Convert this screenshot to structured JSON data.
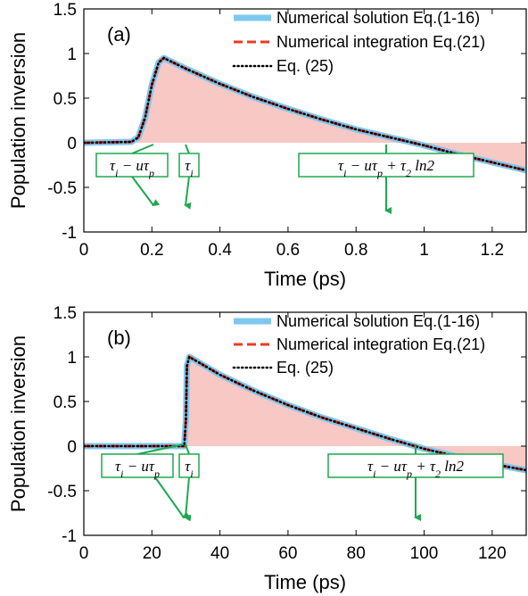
{
  "chart_data": [
    {
      "type": "line",
      "panel_label": "(a)",
      "xlabel": "Time (ps)",
      "ylabel": "Population inversion",
      "xlim": [
        0,
        1.3
      ],
      "ylim": [
        -1,
        1.5
      ],
      "xticks": [
        0,
        0.2,
        0.4,
        0.6,
        0.8,
        1,
        1.2
      ],
      "xtick_labels": [
        "0",
        "0.2",
        "0.4",
        "0.6",
        "0.8",
        "1",
        "1.2"
      ],
      "yticks": [
        -1,
        -0.5,
        0,
        0.5,
        1,
        1.5
      ],
      "ytick_labels": [
        "-1",
        "-0.5",
        "0",
        "0.5",
        "1",
        "1.5"
      ],
      "legend_position": "top-right",
      "series": [
        {
          "name": "Numerical solution Eq.(1-16)",
          "color": "#7ec8f0",
          "style": "thick-solid",
          "x": [
            0,
            0.14,
            0.16,
            0.18,
            0.2,
            0.22,
            0.235,
            0.3,
            0.4,
            0.5,
            0.6,
            0.7,
            0.8,
            0.9,
            1.0,
            1.1,
            1.2,
            1.3
          ],
          "y": [
            0,
            0.01,
            0.06,
            0.28,
            0.65,
            0.9,
            0.95,
            0.83,
            0.66,
            0.51,
            0.38,
            0.26,
            0.15,
            0.06,
            -0.03,
            -0.13,
            -0.22,
            -0.31
          ]
        },
        {
          "name": "Numerical integration Eq.(21)",
          "color": "#ee3a24",
          "style": "dashed",
          "x": [
            0,
            0.14,
            0.16,
            0.18,
            0.2,
            0.22,
            0.235,
            0.3,
            0.4,
            0.5,
            0.6,
            0.7,
            0.8,
            0.9,
            1.0,
            1.1,
            1.2,
            1.3
          ],
          "y": [
            0,
            0.01,
            0.06,
            0.28,
            0.65,
            0.9,
            0.95,
            0.83,
            0.66,
            0.51,
            0.38,
            0.26,
            0.15,
            0.06,
            -0.03,
            -0.13,
            -0.22,
            -0.31
          ]
        },
        {
          "name": "Eq. (25)",
          "color": "#000000",
          "style": "dotted",
          "x": [
            0,
            0.14,
            0.16,
            0.18,
            0.2,
            0.22,
            0.235,
            0.3,
            0.4,
            0.5,
            0.6,
            0.7,
            0.8,
            0.9,
            1.0,
            1.1,
            1.2,
            1.3
          ],
          "y": [
            0,
            0.01,
            0.06,
            0.28,
            0.65,
            0.9,
            0.95,
            0.83,
            0.66,
            0.51,
            0.38,
            0.26,
            0.15,
            0.06,
            -0.03,
            -0.13,
            -0.22,
            -0.31
          ]
        }
      ],
      "annotations": [
        {
          "text": "τ_i − uτ_p",
          "x": 0.23
        },
        {
          "text": "τ_i",
          "x": 0.3
        },
        {
          "text": "τ_i − uτ_p + τ_2 ln2",
          "x": 0.89
        }
      ]
    },
    {
      "type": "line",
      "panel_label": "(b)",
      "xlabel": "Time (ps)",
      "ylabel": "Population inversion",
      "xlim": [
        0,
        130
      ],
      "ylim": [
        -1,
        1.5
      ],
      "xticks": [
        0,
        20,
        40,
        60,
        80,
        100,
        120
      ],
      "xtick_labels": [
        "0",
        "20",
        "40",
        "60",
        "80",
        "100",
        "120"
      ],
      "yticks": [
        -1,
        -0.5,
        0,
        0.5,
        1,
        1.5
      ],
      "ytick_labels": [
        "-1",
        "-0.5",
        "0",
        "0.5",
        "1",
        "1.5"
      ],
      "legend_position": "top-right",
      "series": [
        {
          "name": "Numerical solution Eq.(1-16)",
          "color": "#7ec8f0",
          "style": "thick-solid",
          "x": [
            0,
            29.5,
            30,
            30.3,
            31,
            40,
            50,
            60,
            70,
            80,
            90,
            100,
            110,
            120,
            130
          ],
          "y": [
            0,
            0,
            0.3,
            0.9,
            1.0,
            0.8,
            0.62,
            0.46,
            0.32,
            0.2,
            0.08,
            -0.03,
            -0.12,
            -0.2,
            -0.27
          ]
        },
        {
          "name": "Numerical integration Eq.(21)",
          "color": "#ee3a24",
          "style": "dashed",
          "x": [
            0,
            29.5,
            30,
            30.3,
            31,
            40,
            50,
            60,
            70,
            80,
            90,
            100,
            110,
            120,
            130
          ],
          "y": [
            0,
            0,
            0.3,
            0.9,
            1.0,
            0.8,
            0.62,
            0.46,
            0.32,
            0.2,
            0.08,
            -0.03,
            -0.12,
            -0.2,
            -0.27
          ]
        },
        {
          "name": "Eq. (25)",
          "color": "#000000",
          "style": "dotted",
          "x": [
            0,
            29.5,
            30,
            30.3,
            31,
            40,
            50,
            60,
            70,
            80,
            90,
            100,
            110,
            120,
            130
          ],
          "y": [
            0,
            0,
            0.3,
            0.9,
            1.0,
            0.8,
            0.62,
            0.46,
            0.32,
            0.2,
            0.08,
            -0.03,
            -0.12,
            -0.2,
            -0.27
          ]
        }
      ],
      "annotations": [
        {
          "text": "τ_i − uτ_p",
          "x": 30
        },
        {
          "text": "τ_i",
          "x": 30
        },
        {
          "text": "τ_i − uτ_p + τ_2 ln2",
          "x": 98
        }
      ]
    }
  ],
  "colors": {
    "fill": "#f8c8c4",
    "arrow": "#1ea84f"
  }
}
